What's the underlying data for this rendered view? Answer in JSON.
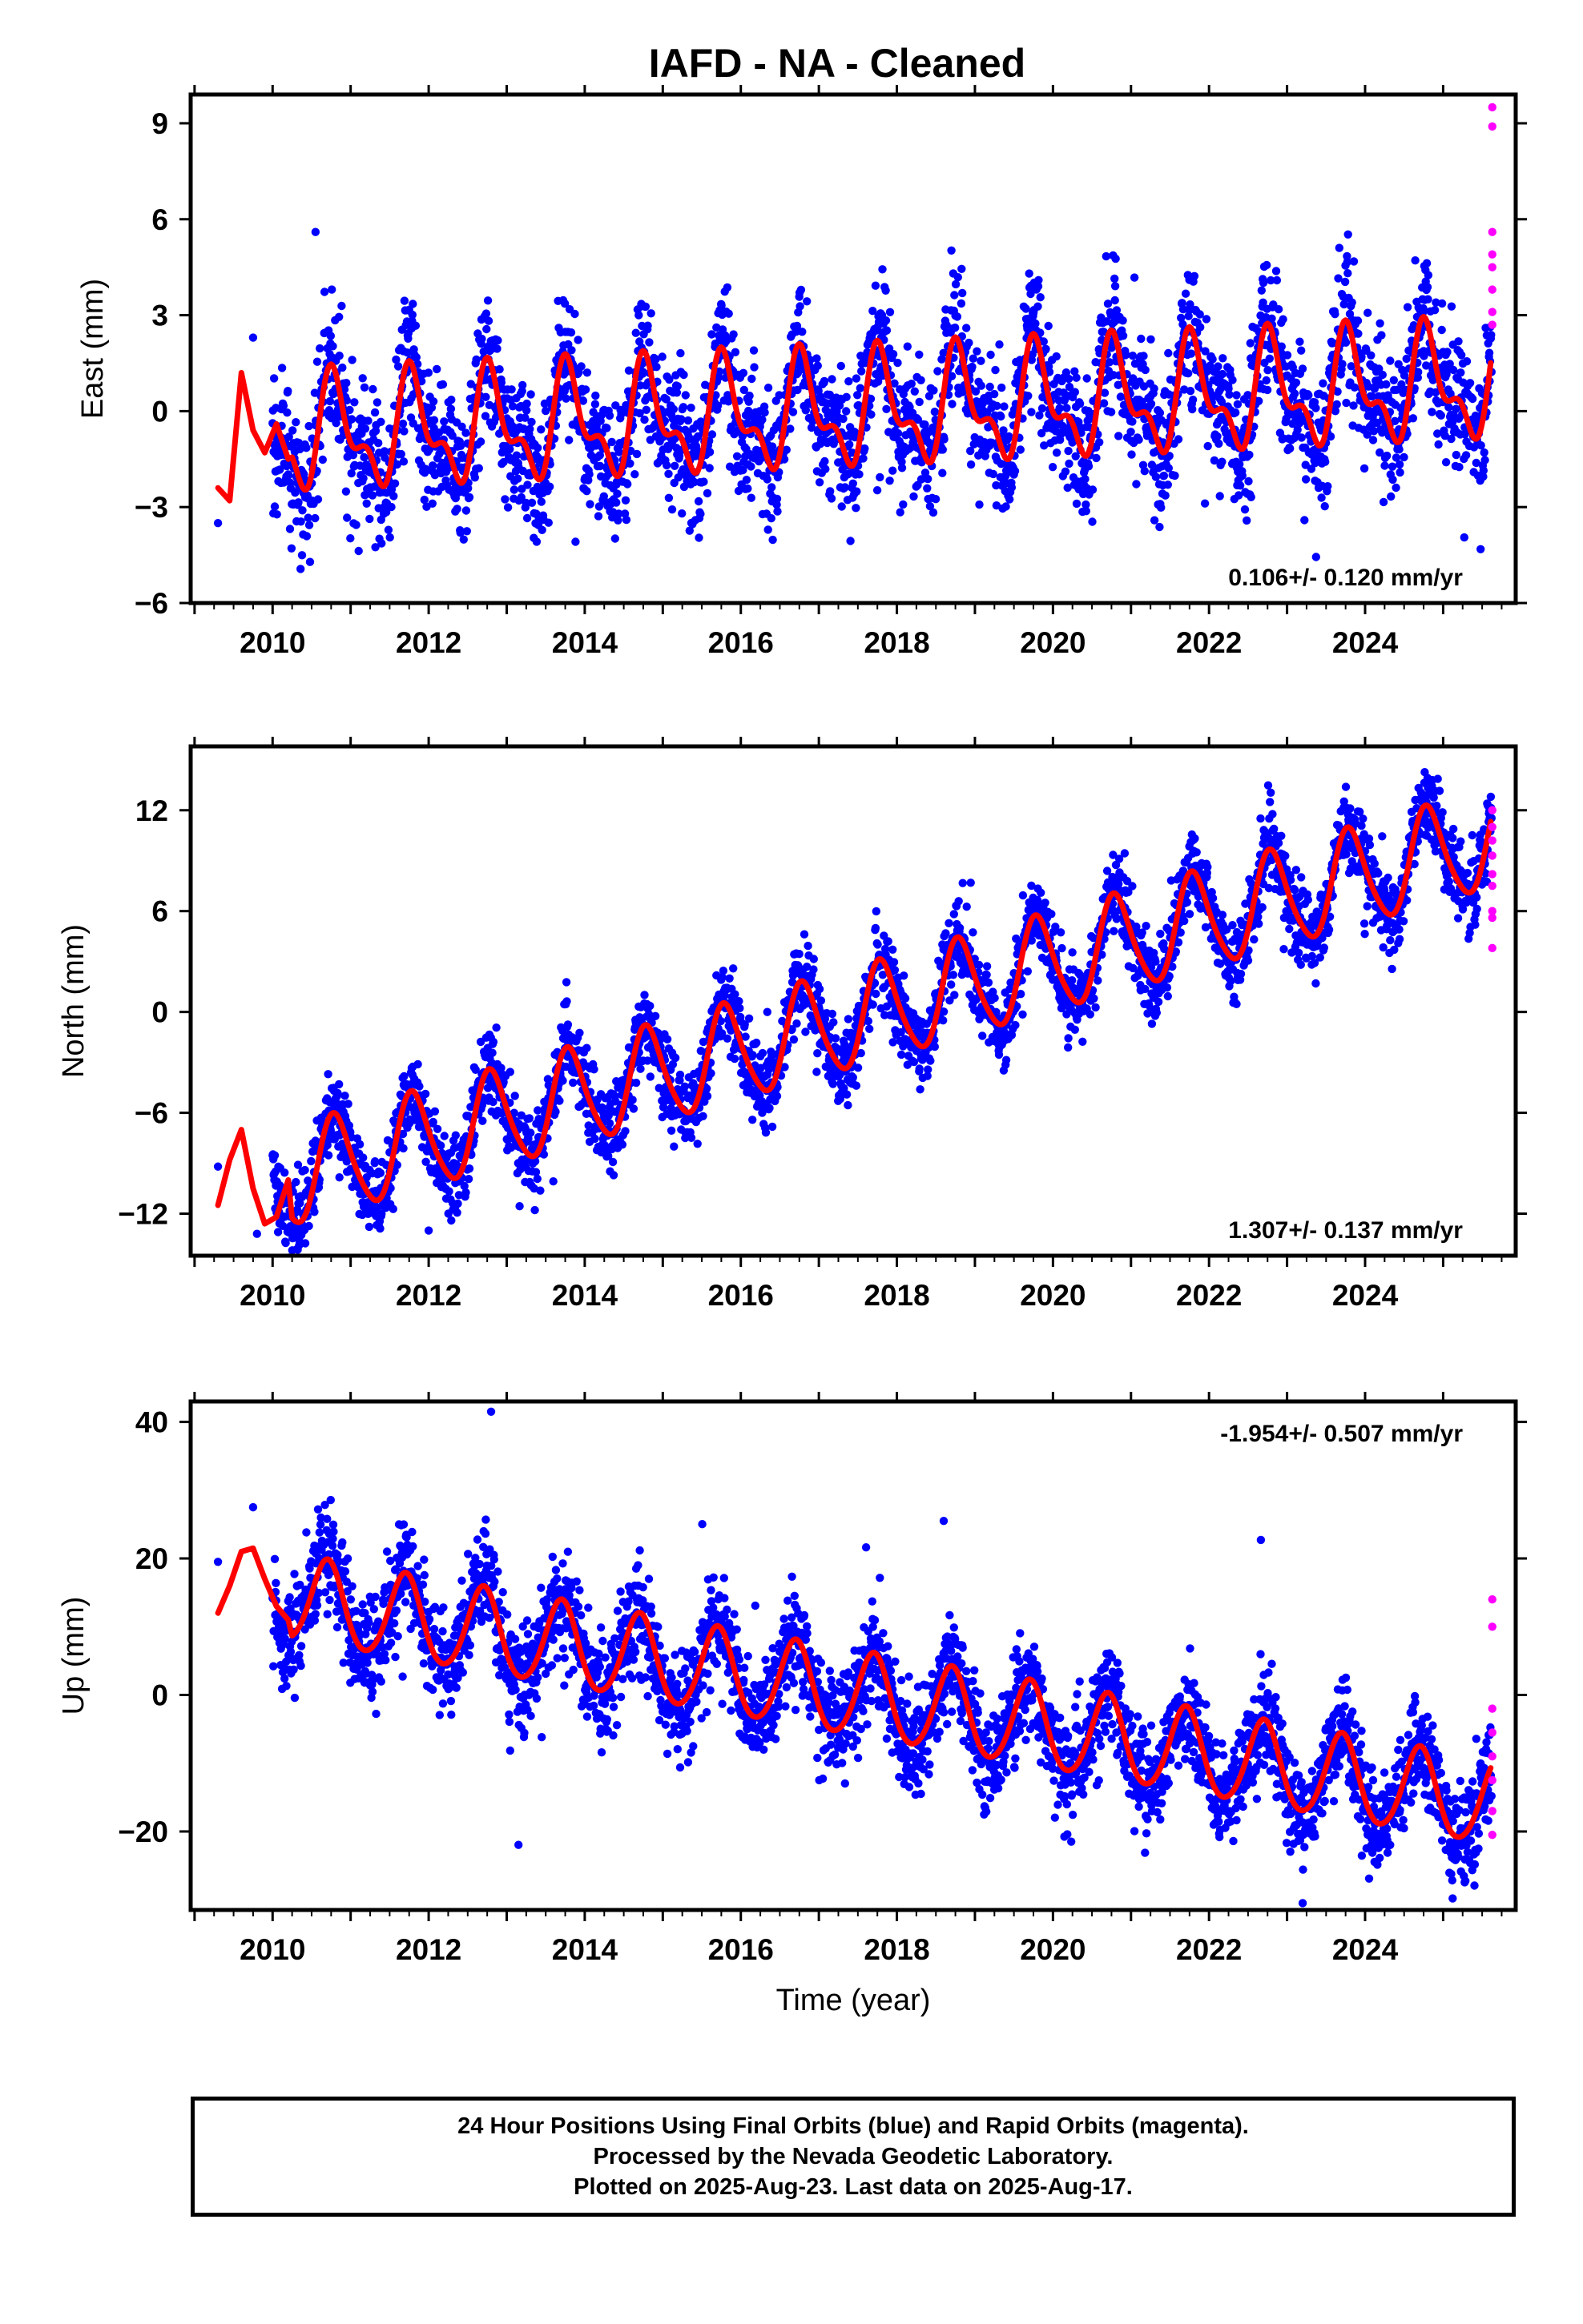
{
  "title": "IAFD  - NA - Cleaned",
  "colors": {
    "final": "#0000ff",
    "rapid": "#ff00ff",
    "model": "#ff0000",
    "axis": "#000000"
  },
  "x_ticks": [
    2010,
    2012,
    2014,
    2016,
    2018,
    2020,
    2022,
    2024
  ],
  "xlabel": "Time (year)",
  "chart_data": [
    {
      "type": "scatter",
      "component": "east",
      "ylabel": "East (mm)",
      "xlim": [
        2008.95,
        2025.93
      ],
      "ylim": [
        -6,
        9.9
      ],
      "y_ticks": [
        9,
        6,
        3,
        0,
        -3,
        -6
      ],
      "y_tick_labels": [
        "9",
        "6",
        "3",
        "0",
        "−3",
        "−6"
      ],
      "rate": "0.106+/- 0.120 mm/yr",
      "rate_position": "bottom-right",
      "model": {
        "x0": 2009.3,
        "x1": 2025.62,
        "intercept": -0.8,
        "slope": 0.106,
        "annual_amp": 1.5,
        "annual_phase": 0.55,
        "semi_amp": 0.8,
        "semi_phase": 0.1,
        "early_x": [
          2009.3,
          2009.45,
          2009.6,
          2009.75,
          2009.9,
          2010.05,
          2010.2
        ],
        "early_y": [
          -2.4,
          -2.8,
          1.2,
          -0.6,
          -1.3,
          -0.4,
          -1.5
        ]
      },
      "noise_sd": 1.05,
      "data_start": 2010.0,
      "data_end": 2025.62,
      "rapid_points": {
        "x": [
          2025.63,
          2025.63,
          2025.63,
          2025.63,
          2025.63,
          2025.63,
          2025.63,
          2025.63
        ],
        "y": [
          9.5,
          8.9,
          5.6,
          4.9,
          4.5,
          3.8,
          3.1,
          2.7
        ]
      },
      "outlier_points": {
        "x": [
          2009.3,
          2009.75,
          2010.55
        ],
        "y": [
          -3.5,
          2.3,
          5.6
        ]
      }
    },
    {
      "type": "scatter",
      "component": "north",
      "ylabel": "North (mm)",
      "xlim": [
        2008.95,
        2025.93
      ],
      "ylim": [
        -14.5,
        15.8
      ],
      "y_ticks": [
        12,
        6,
        0,
        -6,
        -12
      ],
      "y_tick_labels": [
        "12",
        "6",
        "0",
        "−6",
        "−12"
      ],
      "rate": "1.307+/- 0.137 mm/yr",
      "rate_position": "bottom-right",
      "model": {
        "x0": 2009.3,
        "x1": 2025.62,
        "intercept": -10.2,
        "slope": 1.307,
        "annual_amp": 2.9,
        "annual_phase": 0.55,
        "semi_amp": 0.4,
        "semi_phase": 0.1,
        "early_x": [
          2009.3,
          2009.45,
          2009.6,
          2009.75,
          2009.9,
          2010.05,
          2010.2
        ],
        "early_y": [
          -11.5,
          -8.8,
          -7.0,
          -10.5,
          -12.6,
          -12.2,
          -10.0
        ]
      },
      "noise_sd": 1.15,
      "data_start": 2010.0,
      "data_end": 2025.62,
      "rapid_points": {
        "x": [
          2025.63,
          2025.63,
          2025.63,
          2025.63,
          2025.63,
          2025.63,
          2025.63,
          2025.63,
          2025.63
        ],
        "y": [
          12.0,
          11.0,
          10.2,
          9.3,
          8.2,
          7.5,
          6.0,
          5.6,
          3.8
        ]
      },
      "outlier_points": {
        "x": [
          2009.3,
          2009.8,
          2012.0
        ],
        "y": [
          -9.2,
          -13.2,
          -13.0
        ]
      }
    },
    {
      "type": "scatter",
      "component": "up",
      "ylabel": "Up (mm)",
      "xlim": [
        2008.95,
        2025.93
      ],
      "ylim": [
        -31.5,
        43
      ],
      "y_ticks": [
        40,
        20,
        0,
        -20
      ],
      "y_tick_labels": [
        "40",
        "20",
        "0",
        "−20"
      ],
      "rate": "-1.954+/- 0.507 mm/yr",
      "rate_position": "top-right",
      "model": {
        "x0": 2009.3,
        "x1": 2025.62,
        "intercept": 14.5,
        "slope": -1.954,
        "annual_amp": 6.2,
        "annual_phase": 0.45,
        "semi_amp": 0.6,
        "semi_phase": 0.1,
        "early_x": [
          2009.3,
          2009.45,
          2009.6,
          2009.75,
          2009.9,
          2010.05,
          2010.2
        ],
        "early_y": [
          12.0,
          16.0,
          21.0,
          21.5,
          17.0,
          13.0,
          11.0
        ]
      },
      "noise_sd": 3.8,
      "data_start": 2010.0,
      "data_end": 2025.62,
      "rapid_points": {
        "x": [
          2025.63,
          2025.63,
          2025.63,
          2025.63,
          2025.63,
          2025.63,
          2025.63,
          2025.63
        ],
        "y": [
          14.0,
          10.0,
          -2.0,
          -5.5,
          -9.0,
          -12.5,
          -17.0,
          -20.5
        ]
      },
      "outlier_points": {
        "x": [
          2009.3,
          2009.75,
          2012.8,
          2018.6,
          2023.2
        ],
        "y": [
          19.5,
          27.5,
          41.5,
          25.5,
          -30.5
        ]
      }
    }
  ],
  "footer": {
    "line1": "24 Hour Positions Using Final Orbits (blue) and Rapid Orbits (magenta).",
    "line2": "Processed by the Nevada Geodetic Laboratory.",
    "line3": "Plotted on 2025-Aug-23. Last data on 2025-Aug-17."
  }
}
